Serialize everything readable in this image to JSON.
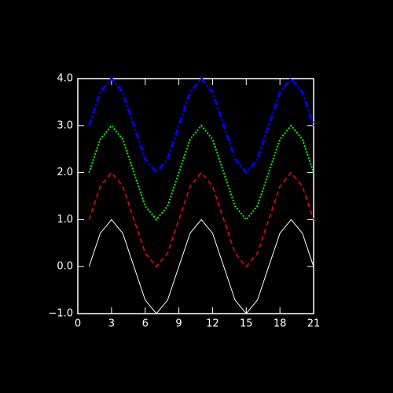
{
  "chart_data": {
    "type": "line",
    "x": [
      1,
      2,
      3,
      4,
      5,
      6,
      7,
      8,
      9,
      10,
      11,
      12,
      13,
      14,
      15,
      16,
      17,
      18,
      19,
      20,
      21
    ],
    "series": [
      {
        "color": "#ffffff",
        "linestyle": "solid",
        "values": [
          0,
          0.71,
          1,
          0.71,
          0,
          -0.71,
          -1,
          -0.71,
          0,
          0.71,
          1,
          0.71,
          0,
          -0.71,
          -1,
          -0.71,
          0,
          0.71,
          1,
          0.71,
          0
        ]
      },
      {
        "color": "#ff0000",
        "linestyle": "dashed",
        "values": [
          1,
          1.71,
          2,
          1.71,
          1,
          0.29,
          0,
          0.29,
          1,
          1.71,
          2,
          1.71,
          1,
          0.29,
          0,
          0.29,
          1,
          1.71,
          2,
          1.71,
          1
        ]
      },
      {
        "color": "#00ff00",
        "linestyle": "dotted",
        "values": [
          2,
          2.71,
          3,
          2.71,
          2,
          1.29,
          1,
          1.29,
          2,
          2.71,
          3,
          2.71,
          2,
          1.29,
          1,
          1.29,
          2,
          2.71,
          3,
          2.71,
          2
        ]
      },
      {
        "color": "#0000ff",
        "linestyle": "dashdot",
        "values": [
          3,
          3.71,
          4,
          3.71,
          3,
          2.29,
          2,
          2.29,
          3,
          3.71,
          4,
          3.71,
          3,
          2.29,
          2,
          2.29,
          3,
          3.71,
          4,
          3.71,
          3
        ]
      }
    ],
    "xlim": [
      0,
      21
    ],
    "xticks": [
      0,
      3,
      6,
      9,
      12,
      15,
      18,
      21
    ],
    "ylim": [
      -1,
      4
    ],
    "yticks": [
      {
        "value": -1,
        "label": "−1.0"
      },
      {
        "value": 0,
        "label": "0.0"
      },
      {
        "value": 1,
        "label": "1.0"
      },
      {
        "value": 2,
        "label": "2.0"
      },
      {
        "value": 3,
        "label": "3.0"
      },
      {
        "value": 4,
        "label": "4.0"
      }
    ]
  }
}
